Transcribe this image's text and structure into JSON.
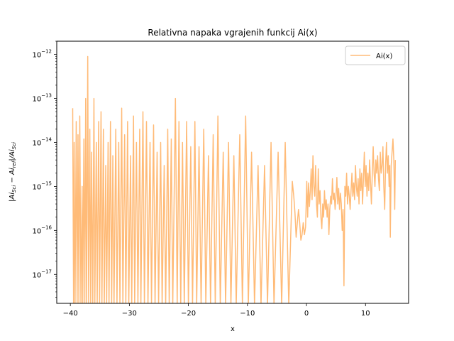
{
  "chart_data": {
    "type": "line",
    "title": "Relativna napaka vgrajenih funkcij Ai(x)",
    "xlabel": "x",
    "ylabel": "|Ai_Sci − Ai_ref|/Ai_Sci",
    "yscale": "log",
    "xlim": [
      -42.3,
      17.3
    ],
    "ylim": [
      2.2e-18,
      2e-12
    ],
    "x_ticks": [
      -40,
      -30,
      -20,
      -10,
      0,
      10
    ],
    "x_tick_labels": [
      "−40",
      "−30",
      "−20",
      "−10",
      "0",
      "10"
    ],
    "y_ticks": [
      1e-17,
      1e-16,
      1e-15,
      1e-14,
      1e-13,
      1e-12
    ],
    "y_tick_labels": [
      "10−17",
      "10−16",
      "10−15",
      "10−14",
      "10−13",
      "10−12"
    ],
    "grid": false,
    "legend_position": "top-right",
    "series": [
      {
        "name": "Ai(x)",
        "color": "#ffbb78",
        "points": [
          [
            -39.6,
            6e-14
          ],
          [
            -39.45,
            2e-18
          ],
          [
            -39.35,
            1e-14
          ],
          [
            -39.2,
            2e-18
          ],
          [
            -39.0,
            3e-14
          ],
          [
            -38.85,
            2e-18
          ],
          [
            -38.7,
            1.5e-14
          ],
          [
            -38.55,
            2e-18
          ],
          [
            -38.4,
            4e-14
          ],
          [
            -38.2,
            2e-18
          ],
          [
            -38.0,
            1e-15
          ],
          [
            -37.9,
            2e-18
          ],
          [
            -37.7,
            1.2e-14
          ],
          [
            -37.55,
            2e-18
          ],
          [
            -37.4,
            1e-13
          ],
          [
            -37.25,
            2e-18
          ],
          [
            -37.05,
            9e-13
          ],
          [
            -36.9,
            2e-18
          ],
          [
            -36.7,
            2e-14
          ],
          [
            -36.55,
            2e-18
          ],
          [
            -36.4,
            6e-15
          ],
          [
            -36.2,
            2e-18
          ],
          [
            -36.0,
            1e-13
          ],
          [
            -35.85,
            2e-18
          ],
          [
            -35.6,
            1e-14
          ],
          [
            -35.45,
            2e-18
          ],
          [
            -35.2,
            3e-14
          ],
          [
            -35.05,
            2e-18
          ],
          [
            -34.8,
            5e-14
          ],
          [
            -34.65,
            2e-18
          ],
          [
            -34.4,
            2e-14
          ],
          [
            -34.25,
            2e-18
          ],
          [
            -34.0,
            3e-15
          ],
          [
            -33.85,
            2e-18
          ],
          [
            -33.6,
            1e-14
          ],
          [
            -33.45,
            2e-18
          ],
          [
            -33.2,
            3e-14
          ],
          [
            -33.0,
            2e-18
          ],
          [
            -32.8,
            5e-15
          ],
          [
            -32.6,
            2e-18
          ],
          [
            -32.3,
            2e-14
          ],
          [
            -32.1,
            2e-18
          ],
          [
            -31.8,
            1e-14
          ],
          [
            -31.6,
            2e-18
          ],
          [
            -31.3,
            6e-14
          ],
          [
            -31.1,
            2e-18
          ],
          [
            -30.8,
            1.5e-14
          ],
          [
            -30.6,
            2e-18
          ],
          [
            -30.3,
            3e-14
          ],
          [
            -30.1,
            2e-18
          ],
          [
            -29.8,
            5e-15
          ],
          [
            -29.6,
            2e-18
          ],
          [
            -29.3,
            4e-14
          ],
          [
            -29.1,
            2e-18
          ],
          [
            -28.8,
            1e-14
          ],
          [
            -28.55,
            2e-18
          ],
          [
            -28.25,
            2e-14
          ],
          [
            -28.05,
            2e-18
          ],
          [
            -27.7,
            5e-14
          ],
          [
            -27.45,
            2e-18
          ],
          [
            -27.1,
            3e-14
          ],
          [
            -26.85,
            2e-18
          ],
          [
            -26.5,
            1e-14
          ],
          [
            -26.25,
            2e-18
          ],
          [
            -25.9,
            2.5e-14
          ],
          [
            -25.65,
            2e-18
          ],
          [
            -25.3,
            6e-15
          ],
          [
            -25.05,
            2e-18
          ],
          [
            -24.7,
            1e-14
          ],
          [
            -24.45,
            2e-18
          ],
          [
            -24.1,
            3e-15
          ],
          [
            -23.85,
            2e-18
          ],
          [
            -23.5,
            2e-14
          ],
          [
            -23.25,
            2e-18
          ],
          [
            -22.9,
            1.2e-14
          ],
          [
            -22.65,
            2e-18
          ],
          [
            -22.2,
            1e-13
          ],
          [
            -21.9,
            2e-18
          ],
          [
            -21.6,
            3e-14
          ],
          [
            -21.3,
            2e-18
          ],
          [
            -21.0,
            1e-14
          ],
          [
            -20.7,
            2e-18
          ],
          [
            -20.3,
            3e-14
          ],
          [
            -20.0,
            2e-18
          ],
          [
            -19.6,
            8e-15
          ],
          [
            -19.3,
            2e-18
          ],
          [
            -18.9,
            3e-14
          ],
          [
            -18.6,
            2e-18
          ],
          [
            -18.2,
            8e-15
          ],
          [
            -17.85,
            2e-18
          ],
          [
            -17.4,
            2e-14
          ],
          [
            -17.05,
            2e-18
          ],
          [
            -16.6,
            5e-15
          ],
          [
            -16.25,
            2e-18
          ],
          [
            -15.8,
            1.5e-14
          ],
          [
            -15.45,
            2e-18
          ],
          [
            -15.0,
            4e-14
          ],
          [
            -14.6,
            2e-18
          ],
          [
            -14.1,
            6e-15
          ],
          [
            -13.7,
            2e-18
          ],
          [
            -13.2,
            1e-14
          ],
          [
            -12.8,
            2e-18
          ],
          [
            -12.3,
            5e-15
          ],
          [
            -11.9,
            2e-18
          ],
          [
            -11.3,
            1.5e-14
          ],
          [
            -10.85,
            2e-18
          ],
          [
            -10.3,
            4e-14
          ],
          [
            -9.85,
            2e-18
          ],
          [
            -9.3,
            6e-15
          ],
          [
            -8.8,
            2e-18
          ],
          [
            -8.2,
            3e-15
          ],
          [
            -7.7,
            2e-18
          ],
          [
            -7.1,
            3e-15
          ],
          [
            -6.6,
            2e-18
          ],
          [
            -6.0,
            1e-14
          ],
          [
            -5.5,
            2e-18
          ],
          [
            -4.8,
            6e-15
          ],
          [
            -4.2,
            2e-18
          ],
          [
            -3.6,
            1e-14
          ],
          [
            -3.0,
            2e-18
          ],
          [
            -2.4,
            1.3e-15
          ],
          [
            -2.15,
            6e-16
          ],
          [
            -1.95,
            2.5e-16
          ],
          [
            -1.75,
            7e-17
          ],
          [
            -1.55,
            1.5e-16
          ],
          [
            -1.35,
            3e-16
          ],
          [
            -1.15,
            1.5e-16
          ],
          [
            -0.95,
            6e-17
          ],
          [
            -0.75,
            8e-17
          ],
          [
            -0.55,
            1.5e-16
          ],
          [
            -0.35,
            8e-17
          ],
          [
            -0.15,
            1.2e-16
          ],
          [
            0.05,
            1.3e-15
          ],
          [
            0.2,
            2e-16
          ],
          [
            0.35,
            1.2e-15
          ],
          [
            0.5,
            3.5e-16
          ],
          [
            0.65,
            8e-16
          ],
          [
            0.8,
            2.5e-15
          ],
          [
            0.95,
            5e-16
          ],
          [
            1.1,
            5e-15
          ],
          [
            1.25,
            1e-15
          ],
          [
            1.4,
            6e-16
          ],
          [
            1.55,
            3e-15
          ],
          [
            1.7,
            4e-16
          ],
          [
            1.85,
            2e-16
          ],
          [
            2.0,
            2.5e-15
          ],
          [
            2.15,
            4e-16
          ],
          [
            2.3,
            8e-16
          ],
          [
            2.45,
            2e-16
          ],
          [
            2.6,
            1.1e-16
          ],
          [
            2.75,
            4e-16
          ],
          [
            2.9,
            2e-16
          ],
          [
            3.05,
            8e-16
          ],
          [
            3.2,
            3e-16
          ],
          [
            3.35,
            5e-16
          ],
          [
            3.5,
            2e-16
          ],
          [
            3.65,
            4e-16
          ],
          [
            3.8,
            8e-17
          ],
          [
            3.95,
            3e-16
          ],
          [
            4.1,
            6e-16
          ],
          [
            4.25,
            4e-16
          ],
          [
            4.4,
            1.5e-15
          ],
          [
            4.55,
            5e-16
          ],
          [
            4.7,
            7e-16
          ],
          [
            4.85,
            3e-16
          ],
          [
            5.0,
            6e-16
          ],
          [
            5.15,
            1.6e-15
          ],
          [
            5.3,
            4e-16
          ],
          [
            5.45,
            9e-16
          ],
          [
            5.6,
            3e-16
          ],
          [
            5.75,
            7e-16
          ],
          [
            5.9,
            4e-16
          ],
          [
            6.05,
            1e-16
          ],
          [
            6.2,
            3e-16
          ],
          [
            6.35,
            5.5e-18
          ],
          [
            6.5,
            1e-15
          ],
          [
            6.65,
            6e-16
          ],
          [
            6.8,
            2e-15
          ],
          [
            6.95,
            4e-16
          ],
          [
            7.1,
            1e-15
          ],
          [
            7.25,
            6e-16
          ],
          [
            7.4,
            3e-16
          ],
          [
            7.55,
            8e-16
          ],
          [
            7.7,
            2e-15
          ],
          [
            7.85,
            6e-16
          ],
          [
            8.0,
            1.2e-15
          ],
          [
            8.15,
            5e-16
          ],
          [
            8.3,
            3e-15
          ],
          [
            8.45,
            1e-15
          ],
          [
            8.6,
            6e-16
          ],
          [
            8.75,
            1.5e-15
          ],
          [
            8.9,
            4e-16
          ],
          [
            9.05,
            2.5e-15
          ],
          [
            9.2,
            8e-16
          ],
          [
            9.35,
            2e-15
          ],
          [
            9.5,
            4e-16
          ],
          [
            9.65,
            1.5e-15
          ],
          [
            9.8,
            6e-15
          ],
          [
            9.95,
            1e-15
          ],
          [
            10.1,
            3e-15
          ],
          [
            10.25,
            6e-16
          ],
          [
            10.4,
            2e-15
          ],
          [
            10.55,
            8e-16
          ],
          [
            10.7,
            4e-15
          ],
          [
            10.85,
            1.2e-15
          ],
          [
            11.0,
            4e-16
          ],
          [
            11.15,
            2e-15
          ],
          [
            11.3,
            8e-15
          ],
          [
            11.45,
            2e-15
          ],
          [
            11.6,
            1e-15
          ],
          [
            11.75,
            4e-15
          ],
          [
            11.9,
            2e-15
          ],
          [
            12.05,
            5e-15
          ],
          [
            12.2,
            1.5e-15
          ],
          [
            12.35,
            8e-16
          ],
          [
            12.5,
            6e-15
          ],
          [
            12.65,
            2e-15
          ],
          [
            12.8,
            3e-15
          ],
          [
            12.95,
            8e-15
          ],
          [
            13.1,
            1e-15
          ],
          [
            13.25,
            3e-16
          ],
          [
            13.4,
            3e-15
          ],
          [
            13.55,
            1e-14
          ],
          [
            13.7,
            2e-15
          ],
          [
            13.85,
            5e-15
          ],
          [
            14.0,
            1e-15
          ],
          [
            14.1,
            3e-15
          ],
          [
            14.2,
            7e-17
          ],
          [
            14.35,
            3e-15
          ],
          [
            14.5,
            6e-15
          ],
          [
            14.65,
            1.2e-14
          ],
          [
            14.8,
            4e-15
          ],
          [
            14.95,
            3e-16
          ],
          [
            15.05,
            4e-15
          ]
        ]
      }
    ]
  }
}
